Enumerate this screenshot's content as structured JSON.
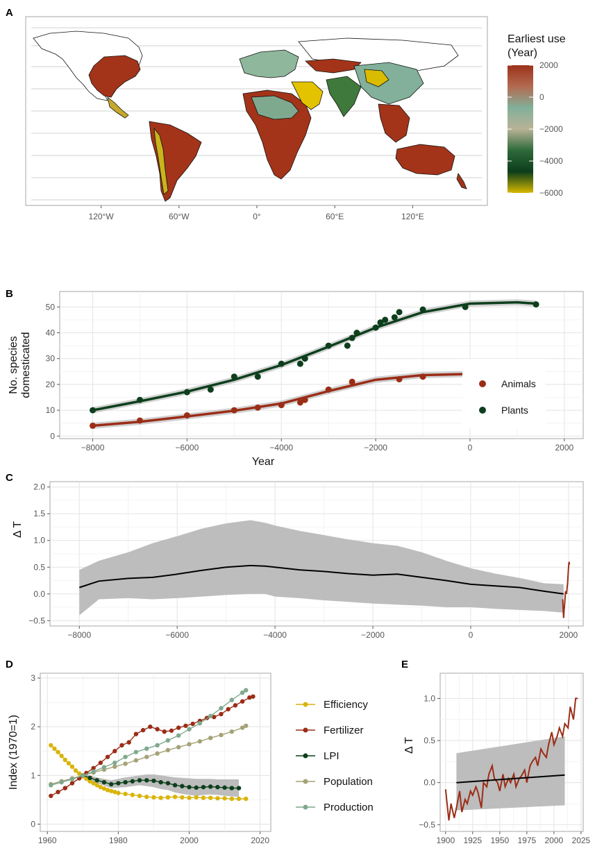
{
  "panels": {
    "A": {
      "letter": "A"
    },
    "B": {
      "letter": "B"
    },
    "C": {
      "letter": "C"
    },
    "D": {
      "letter": "D"
    },
    "E": {
      "letter": "E"
    }
  },
  "chart_data": [
    {
      "id": "A",
      "type": "heatmap",
      "title": "",
      "x_tick_labels": [
        "120°W",
        "60°W",
        "0°",
        "60°E",
        "120°E"
      ],
      "x_ticks": [
        -120,
        -60,
        0,
        60,
        120
      ],
      "legend": {
        "title_line1": "Earliest use",
        "title_line2": "(Year)",
        "ticks": [
          2000,
          0,
          -2000,
          -4000,
          -6000
        ],
        "tick_labels": [
          "2000",
          "0",
          "−2000",
          "−4000",
          "−6000"
        ],
        "colors": [
          "#9b3219",
          "#b46a52",
          "#82b09a",
          "#b9b296",
          "#2e6a3a",
          "#0c3d1a",
          "#d6b800"
        ]
      },
      "regions": [
        {
          "name": "North America",
          "color": "#a33419"
        },
        {
          "name": "Mexico",
          "color": "#c5a92b"
        },
        {
          "name": "South America",
          "color": "#a33419"
        },
        {
          "name": "Andes",
          "color": "#c9b41b"
        },
        {
          "name": "Europe",
          "color": "#8fb79c"
        },
        {
          "name": "Africa",
          "color": "#a33419"
        },
        {
          "name": "Sahel",
          "color": "#7fa98e"
        },
        {
          "name": "Arabia",
          "color": "#e3c300"
        },
        {
          "name": "Central Asia",
          "color": "#a33419"
        },
        {
          "name": "South Asia",
          "color": "#3f7a3c"
        },
        {
          "name": "China",
          "color": "#82b09a"
        },
        {
          "name": "North China Plain",
          "color": "#d9bc00"
        },
        {
          "name": "Southeast Asia",
          "color": "#a33419"
        },
        {
          "name": "Australia",
          "color": "#a33419"
        }
      ]
    },
    {
      "id": "B",
      "type": "scatter",
      "xlabel": "Year",
      "ylabel_line1": "No. species",
      "ylabel_line2": "domesticated",
      "xlim": [
        -8700,
        2400
      ],
      "ylim": [
        -1,
        56
      ],
      "x_ticks": [
        -8000,
        -6000,
        -4000,
        -2000,
        0,
        2000
      ],
      "x_tick_labels": [
        "−8000",
        "−6000",
        "−4000",
        "−2000",
        "0",
        "2000"
      ],
      "y_ticks": [
        0,
        10,
        20,
        30,
        40,
        50
      ],
      "y_tick_labels": [
        "0",
        "10",
        "20",
        "30",
        "40",
        "50"
      ],
      "legend_position": "right",
      "series": [
        {
          "name": "Animals",
          "color": "#9b2d17",
          "x": [
            -8000,
            -7000,
            -6000,
            -5000,
            -4500,
            -4000,
            -3600,
            -3500,
            -3000,
            -2500,
            -1500,
            -1000,
            -100
          ],
          "y": [
            4,
            6,
            8,
            10,
            11,
            12,
            13,
            14,
            18,
            21,
            22,
            23,
            24
          ],
          "fit_x": [
            -8000,
            -7000,
            -6000,
            -5000,
            -4000,
            -3000,
            -2000,
            -1000,
            -100
          ],
          "fit_y": [
            4,
            5.5,
            7.6,
            9.8,
            12.6,
            17.4,
            21.8,
            23.6,
            24
          ]
        },
        {
          "name": "Plants",
          "color": "#0d3f1c",
          "x": [
            -8000,
            -7000,
            -6000,
            -5500,
            -5000,
            -4500,
            -4000,
            -3600,
            -3500,
            -3000,
            -2600,
            -2500,
            -2400,
            -2000,
            -1900,
            -1800,
            -1600,
            -1500,
            -1000,
            -100,
            1400
          ],
          "y": [
            10,
            14,
            17,
            18,
            23,
            23,
            28,
            28,
            30,
            35,
            35,
            38,
            40,
            42,
            44,
            45,
            46,
            48,
            49,
            50,
            51
          ],
          "fit_x": [
            -8000,
            -7000,
            -6000,
            -5000,
            -4000,
            -3000,
            -2000,
            -1000,
            0,
            1000,
            1400
          ],
          "fit_y": [
            10,
            13.5,
            17.2,
            21.8,
            27.5,
            34.6,
            42,
            48,
            51.3,
            51.8,
            51.3
          ]
        }
      ]
    },
    {
      "id": "C",
      "type": "line",
      "ylabel": "Δ T",
      "xlim": [
        -8600,
        2300
      ],
      "ylim": [
        -0.6,
        2.1
      ],
      "x_ticks": [
        -8000,
        -6000,
        -4000,
        -2000,
        0,
        2000
      ],
      "x_tick_labels": [
        "−8000",
        "−6000",
        "−4000",
        "−2000",
        "0",
        "2000"
      ],
      "y_ticks": [
        -0.5,
        0,
        0.5,
        1,
        1.5,
        2
      ],
      "y_tick_labels": [
        "−0.5",
        "0.0",
        "0.5",
        "1.0",
        "1.5",
        "2.0"
      ],
      "series": [
        {
          "name": "",
          "color": "#000000",
          "x": [
            -8000,
            -7600,
            -7000,
            -6500,
            -6000,
            -5500,
            -5000,
            -4500,
            -4200,
            -4000,
            -3500,
            -3000,
            -2500,
            -2000,
            -1500,
            -1000,
            -500,
            0,
            500,
            1000,
            1500,
            1900
          ],
          "y": [
            0.12,
            0.24,
            0.29,
            0.31,
            0.37,
            0.44,
            0.5,
            0.53,
            0.52,
            0.5,
            0.45,
            0.42,
            0.38,
            0.35,
            0.37,
            0.31,
            0.25,
            0.18,
            0.15,
            0.12,
            0.05,
            0.0
          ],
          "band_upper": [
            0.45,
            0.62,
            0.78,
            0.95,
            1.08,
            1.22,
            1.32,
            1.38,
            1.33,
            1.28,
            1.18,
            1.1,
            1.02,
            0.95,
            0.9,
            0.78,
            0.62,
            0.48,
            0.38,
            0.3,
            0.2,
            0.18
          ],
          "band_lower": [
            -0.4,
            -0.1,
            -0.08,
            -0.1,
            -0.08,
            -0.05,
            -0.02,
            0.0,
            0.0,
            -0.05,
            -0.08,
            -0.12,
            -0.15,
            -0.18,
            -0.2,
            -0.22,
            -0.25,
            -0.25,
            -0.28,
            -0.3,
            -0.32,
            -0.35
          ]
        },
        {
          "name": "",
          "color": "#9b2d17",
          "x": [
            1880,
            1900,
            1910,
            1920,
            1940,
            1960,
            1980,
            2000,
            2010,
            2020
          ],
          "y": [
            -0.1,
            -0.45,
            -0.3,
            -0.2,
            0.05,
            0.0,
            0.2,
            0.5,
            0.6,
            0.55
          ]
        }
      ]
    },
    {
      "id": "D",
      "type": "line",
      "ylabel": "Index (1970=1)",
      "xlim": [
        1958,
        2023
      ],
      "ylim": [
        -0.15,
        3.1
      ],
      "x_ticks": [
        1960,
        1980,
        2000,
        2020
      ],
      "x_tick_labels": [
        "1960",
        "1980",
        "2000",
        "2020"
      ],
      "y_ticks": [
        0,
        1,
        2,
        3
      ],
      "y_tick_labels": [
        "0",
        "1",
        "2",
        "3"
      ],
      "legend_position": "right",
      "series": [
        {
          "name": "Efficiency",
          "color": "#d9b40b",
          "x": [
            1961,
            1962,
            1963,
            1964,
            1965,
            1966,
            1967,
            1968,
            1969,
            1970,
            1971,
            1972,
            1973,
            1974,
            1975,
            1976,
            1977,
            1978,
            1979,
            1980,
            1982,
            1984,
            1986,
            1988,
            1990,
            1992,
            1994,
            1996,
            1998,
            2000,
            2002,
            2004,
            2006,
            2008,
            2010,
            2012,
            2014,
            2016
          ],
          "y": [
            1.62,
            1.55,
            1.48,
            1.4,
            1.32,
            1.25,
            1.18,
            1.1,
            1.04,
            0.98,
            0.93,
            0.88,
            0.84,
            0.8,
            0.76,
            0.73,
            0.7,
            0.68,
            0.66,
            0.64,
            0.62,
            0.6,
            0.58,
            0.56,
            0.55,
            0.54,
            0.55,
            0.56,
            0.55,
            0.54,
            0.55,
            0.54,
            0.54,
            0.53,
            0.53,
            0.52,
            0.52,
            0.52
          ]
        },
        {
          "name": "Fertilizer",
          "color": "#9b2d17",
          "x": [
            1961,
            1963,
            1965,
            1967,
            1969,
            1971,
            1973,
            1975,
            1977,
            1979,
            1981,
            1983,
            1985,
            1987,
            1989,
            1991,
            1993,
            1995,
            1997,
            1999,
            2001,
            2003,
            2005,
            2007,
            2009,
            2011,
            2013,
            2015,
            2017,
            2018
          ],
          "y": [
            0.58,
            0.66,
            0.74,
            0.84,
            0.94,
            1.05,
            1.15,
            1.26,
            1.38,
            1.5,
            1.62,
            1.68,
            1.85,
            1.93,
            2.0,
            1.95,
            1.9,
            1.92,
            1.98,
            2.02,
            2.06,
            2.12,
            2.18,
            2.2,
            2.26,
            2.36,
            2.44,
            2.52,
            2.6,
            2.62
          ]
        },
        {
          "name": "LPI",
          "color": "#0d3f1c",
          "x": [
            1970,
            1972,
            1974,
            1976,
            1978,
            1980,
            1982,
            1984,
            1986,
            1988,
            1990,
            1992,
            1994,
            1996,
            1998,
            2000,
            2002,
            2004,
            2006,
            2008,
            2010,
            2012,
            2014
          ],
          "y": [
            1.0,
            0.95,
            0.9,
            0.86,
            0.82,
            0.84,
            0.86,
            0.88,
            0.9,
            0.9,
            0.89,
            0.86,
            0.84,
            0.8,
            0.78,
            0.76,
            0.75,
            0.76,
            0.77,
            0.76,
            0.75,
            0.74,
            0.74
          ],
          "band_upper": [
            1.04,
            1.0,
            0.96,
            0.93,
            0.9,
            0.93,
            0.96,
            0.98,
            1.0,
            1.02,
            1.02,
            1.0,
            0.98,
            0.96,
            0.95,
            0.94,
            0.93,
            0.93,
            0.93,
            0.92,
            0.92,
            0.92,
            0.92
          ],
          "band_lower": [
            0.96,
            0.9,
            0.84,
            0.79,
            0.74,
            0.75,
            0.76,
            0.78,
            0.8,
            0.78,
            0.76,
            0.72,
            0.7,
            0.65,
            0.62,
            0.6,
            0.58,
            0.6,
            0.61,
            0.6,
            0.58,
            0.57,
            0.56
          ]
        },
        {
          "name": "Population",
          "color": "#a5a277",
          "x": [
            1961,
            1964,
            1967,
            1970,
            1973,
            1976,
            1979,
            1982,
            1985,
            1988,
            1991,
            1994,
            1997,
            2000,
            2003,
            2006,
            2009,
            2012,
            2015,
            2016
          ],
          "y": [
            0.82,
            0.88,
            0.94,
            1.0,
            1.06,
            1.12,
            1.18,
            1.24,
            1.31,
            1.38,
            1.45,
            1.52,
            1.58,
            1.64,
            1.7,
            1.77,
            1.83,
            1.9,
            1.98,
            2.02
          ]
        },
        {
          "name": "Production",
          "color": "#7fa98e",
          "x": [
            1961,
            1964,
            1967,
            1970,
            1973,
            1976,
            1979,
            1982,
            1985,
            1988,
            1991,
            1994,
            1997,
            2000,
            2003,
            2006,
            2009,
            2012,
            2015,
            2016
          ],
          "y": [
            0.8,
            0.86,
            0.92,
            1.0,
            1.08,
            1.17,
            1.26,
            1.38,
            1.48,
            1.55,
            1.62,
            1.72,
            1.82,
            1.95,
            2.07,
            2.22,
            2.38,
            2.55,
            2.7,
            2.75
          ]
        }
      ]
    },
    {
      "id": "E",
      "type": "line",
      "ylabel": "Δ T",
      "xlim": [
        1895,
        2027
      ],
      "ylim": [
        -0.58,
        1.3
      ],
      "x_ticks": [
        1900,
        1925,
        1950,
        1975,
        2000,
        2025
      ],
      "x_tick_labels": [
        "1900",
        "1925",
        "1950",
        "1975",
        "2000",
        "2025"
      ],
      "y_ticks": [
        -0.5,
        0,
        0.5,
        1
      ],
      "y_tick_labels": [
        "−0.5",
        "0.0",
        "0.5",
        "1.0"
      ],
      "series": [
        {
          "name": "",
          "color": "#9b2d17",
          "x": [
            1900,
            1903,
            1905,
            1908,
            1910,
            1913,
            1915,
            1918,
            1920,
            1923,
            1925,
            1928,
            1930,
            1933,
            1935,
            1938,
            1940,
            1943,
            1945,
            1948,
            1950,
            1953,
            1955,
            1958,
            1960,
            1963,
            1965,
            1968,
            1970,
            1973,
            1975,
            1978,
            1980,
            1983,
            1985,
            1988,
            1990,
            1993,
            1995,
            1998,
            2000,
            2003,
            2005,
            2008,
            2010,
            2013,
            2015,
            2018,
            2020,
            2022
          ],
          "y": [
            -0.08,
            -0.45,
            -0.25,
            -0.42,
            -0.3,
            -0.1,
            -0.35,
            -0.2,
            -0.25,
            -0.1,
            -0.15,
            -0.05,
            -0.12,
            -0.3,
            0.0,
            -0.05,
            0.1,
            0.2,
            0.05,
            0.0,
            -0.1,
            0.1,
            -0.05,
            0.05,
            0.0,
            0.1,
            -0.05,
            0.05,
            0.08,
            0.15,
            0.0,
            0.2,
            0.25,
            0.3,
            0.2,
            0.4,
            0.35,
            0.3,
            0.45,
            0.6,
            0.45,
            0.55,
            0.65,
            0.55,
            0.7,
            0.65,
            0.9,
            0.75,
            1.0,
            1.0
          ]
        },
        {
          "name": "",
          "color": "#000000",
          "x": [
            1910,
            2010
          ],
          "y": [
            0.0,
            0.09
          ],
          "band_upper": [
            0.35,
            0.55
          ],
          "band_lower": [
            -0.33,
            -0.27
          ]
        }
      ]
    }
  ]
}
